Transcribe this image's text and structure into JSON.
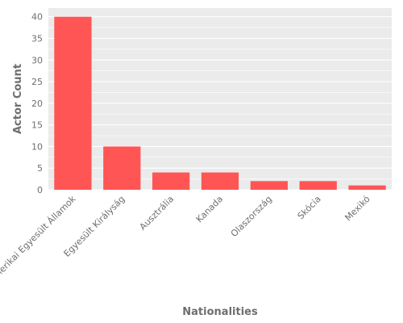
{
  "chart_data": {
    "type": "bar",
    "title": "",
    "xlabel": "Nationalities",
    "ylabel": "Actor Count",
    "categories": [
      "Amerikai Egyesült Államok",
      "Egyesült Királyság",
      "Ausztrália",
      "Kanada",
      "Olaszország",
      "Skócia",
      "Mexikó"
    ],
    "values": [
      40,
      10,
      4,
      4,
      2,
      2,
      1
    ],
    "ylim": [
      0,
      42
    ],
    "yticks": [
      0,
      5,
      10,
      15,
      20,
      25,
      30,
      35,
      40
    ],
    "grid": true,
    "bar_color": "#ff5555",
    "plot_background": "#ebebeb",
    "grid_color": "#ffffff"
  }
}
